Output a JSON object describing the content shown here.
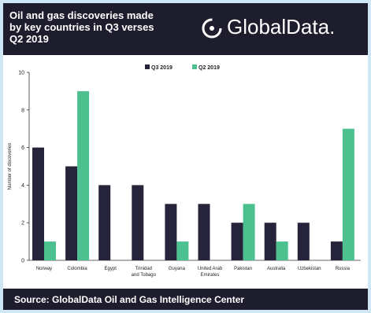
{
  "header": {
    "title": "Oil and gas discoveries made\nby key countries in Q3 verses\nQ2 2019",
    "logo": "GlobalData."
  },
  "footer": {
    "source": "Source: GlobalData Oil and Gas Intelligence Center"
  },
  "colors": {
    "q3": "#26243a",
    "q2": "#4dc08f",
    "frame": "#cfe6f4",
    "band": "#1d1d2e"
  },
  "chart_data": {
    "type": "bar",
    "title": "",
    "xlabel": "",
    "ylabel": "Number of discoveries",
    "ylim": [
      0,
      10
    ],
    "yticks": [
      0,
      2,
      4,
      6,
      8,
      10
    ],
    "legend_position": "top-center",
    "grid": false,
    "categories": [
      "Norway",
      "Colombia",
      "Egypt",
      "Trinidad and Tobago",
      "Guyana",
      "United Arab Emirates",
      "Pakistan",
      "Australia",
      "Uzbekistan",
      "Russia"
    ],
    "category_lines": [
      [
        "Norway"
      ],
      [
        "Colombia"
      ],
      [
        "Egypt"
      ],
      [
        "Trinidad",
        "and Tobago"
      ],
      [
        "Guyana"
      ],
      [
        "United Arab",
        "Emirates"
      ],
      [
        "Pakistan"
      ],
      [
        "Australia"
      ],
      [
        "Uzbekistan"
      ],
      [
        "Russia"
      ]
    ],
    "series": [
      {
        "name": "Q3 2019",
        "values": [
          6,
          5,
          4,
          4,
          3,
          3,
          2,
          2,
          2,
          1
        ]
      },
      {
        "name": "Q2 2019",
        "values": [
          1,
          9,
          0,
          0,
          1,
          0,
          3,
          1,
          0,
          7
        ]
      }
    ]
  }
}
